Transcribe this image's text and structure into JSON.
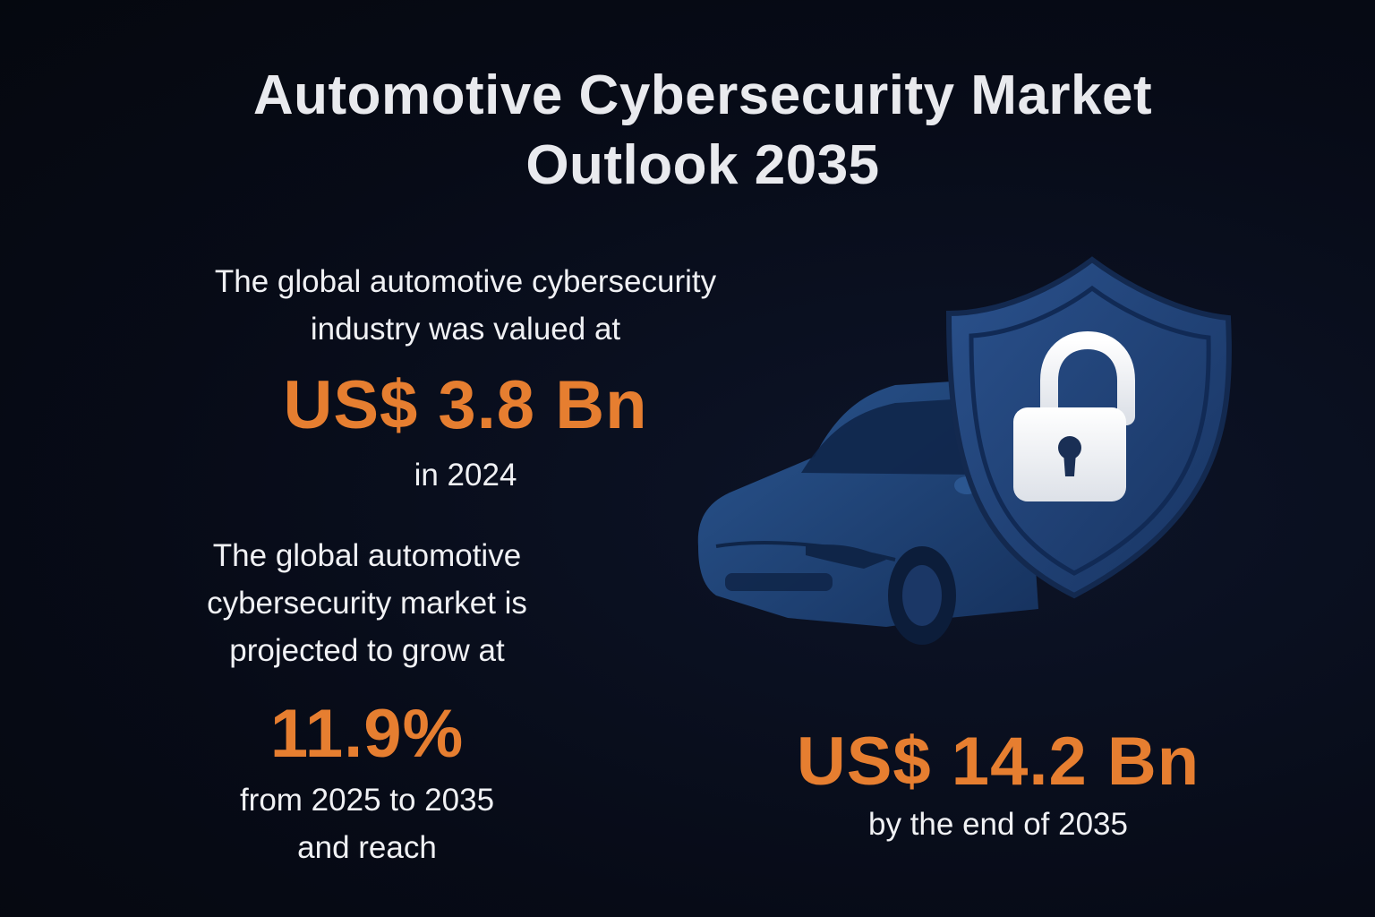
{
  "title": {
    "line1": "Automotive Cybersecurity Market",
    "line2": "Outlook 2035"
  },
  "current_value": {
    "intro_line1": "The global automotive cybersecurity",
    "intro_line2": "industry was valued at",
    "value": "US$ 3.8 Bn",
    "suffix": "in 2024"
  },
  "growth": {
    "intro_line1": "The global automotive",
    "intro_line2": "cybersecurity market is",
    "intro_line3": "projected to grow at",
    "value": "11.9%",
    "suffix_line1": "from 2025 to 2035",
    "suffix_line2": "and reach"
  },
  "forecast": {
    "value": "US$ 14.2 Bn",
    "suffix": "by the end of 2035"
  },
  "colors": {
    "background": "#070b17",
    "accent": "#e67e30",
    "text": "#f0f1f4",
    "illustration_blue": "#1e3f72"
  },
  "illustration": {
    "car": "car-icon",
    "shield": "shield-icon",
    "lock": "padlock-icon"
  }
}
